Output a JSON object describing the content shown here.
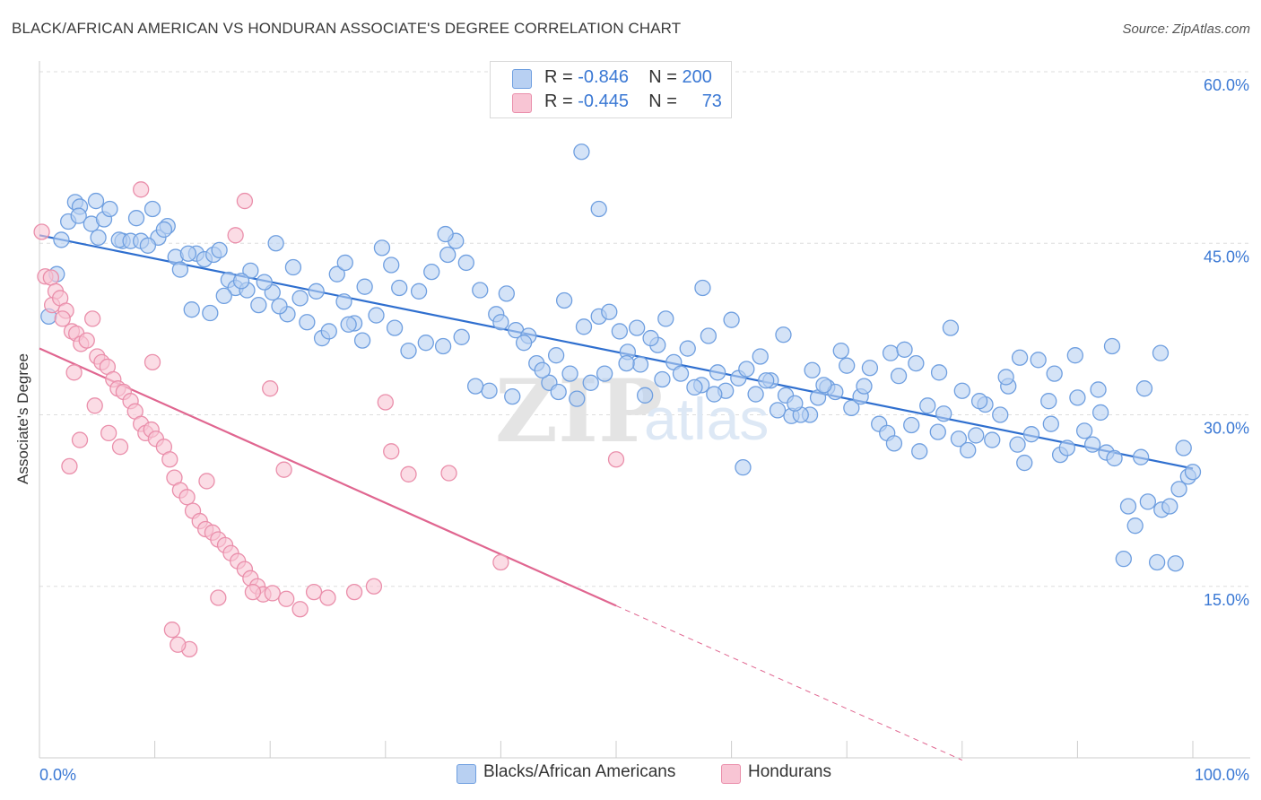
{
  "header": {
    "title": "BLACK/AFRICAN AMERICAN VS HONDURAN ASSOCIATE'S DEGREE CORRELATION CHART",
    "source": "Source: ZipAtlas.com"
  },
  "legend": {
    "rows": [
      {
        "r_label": "R =",
        "r_value": "-0.846",
        "n_label": "N =",
        "n_value": "200"
      },
      {
        "r_label": "R =",
        "r_value": "-0.445",
        "n_label": "N =",
        "n_value": "73"
      }
    ]
  },
  "bottom_legend": {
    "blue": "Blacks/African Americans",
    "pink": "Hondurans"
  },
  "colors": {
    "blue_fill": "#b8d0f2",
    "blue_stroke": "#6f9fe0",
    "blue_line": "#2f6fcf",
    "pink_fill": "#f8c5d4",
    "pink_stroke": "#ea8fab",
    "pink_line": "#e06690",
    "tick_label": "#3a78d4",
    "grid": "#dddddd"
  },
  "chart_data": {
    "type": "scatter",
    "title": "BLACK/AFRICAN AMERICAN VS HONDURAN ASSOCIATE'S DEGREE CORRELATION CHART",
    "xlabel": "",
    "ylabel": "Associate's Degree",
    "xlim": [
      0,
      100
    ],
    "ylim": [
      0,
      60
    ],
    "x_ticks": [
      "0.0%",
      "100.0%"
    ],
    "y_ticks": [
      {
        "value": 15,
        "label": "15.0%"
      },
      {
        "value": 30,
        "label": "30.0%"
      },
      {
        "value": 45,
        "label": "45.0%"
      },
      {
        "value": 60,
        "label": "60.0%"
      }
    ],
    "watermark": "ZIPatlas",
    "series": [
      {
        "name": "Blacks/African Americans",
        "R": -0.846,
        "N": 200,
        "trend": {
          "x": [
            0,
            100
          ],
          "y": [
            45.7,
            25.3
          ]
        },
        "points": [
          [
            1.5,
            42.3
          ],
          [
            0.8,
            38.6
          ],
          [
            1.9,
            45.3
          ],
          [
            2.5,
            46.9
          ],
          [
            3.1,
            48.6
          ],
          [
            3.5,
            48.2
          ],
          [
            3.4,
            47.4
          ],
          [
            4.5,
            46.7
          ],
          [
            5.1,
            45.5
          ],
          [
            5.6,
            47.1
          ],
          [
            4.9,
            48.7
          ],
          [
            6.1,
            48.0
          ],
          [
            7.2,
            45.2
          ],
          [
            6.9,
            45.3
          ],
          [
            7.9,
            45.2
          ],
          [
            8.4,
            47.2
          ],
          [
            9.8,
            48.0
          ],
          [
            8.8,
            45.2
          ],
          [
            10.3,
            45.5
          ],
          [
            11.1,
            46.5
          ],
          [
            11.8,
            43.8
          ],
          [
            12.2,
            42.7
          ],
          [
            13.6,
            44.1
          ],
          [
            12.9,
            44.1
          ],
          [
            14.3,
            43.6
          ],
          [
            15.1,
            44.0
          ],
          [
            15.6,
            44.4
          ],
          [
            16.4,
            41.8
          ],
          [
            17.0,
            41.1
          ],
          [
            18.3,
            42.6
          ],
          [
            19.0,
            39.6
          ],
          [
            20.2,
            40.7
          ],
          [
            21.5,
            38.8
          ],
          [
            20.8,
            39.5
          ],
          [
            22.6,
            40.2
          ],
          [
            23.2,
            38.1
          ],
          [
            24.5,
            36.7
          ],
          [
            25.1,
            37.3
          ],
          [
            26.4,
            39.9
          ],
          [
            27.3,
            38.0
          ],
          [
            28.2,
            41.2
          ],
          [
            29.7,
            44.6
          ],
          [
            30.5,
            43.1
          ],
          [
            31.2,
            41.1
          ],
          [
            32.9,
            40.8
          ],
          [
            34.0,
            42.5
          ],
          [
            35.4,
            44.0
          ],
          [
            36.1,
            45.2
          ],
          [
            37.0,
            43.3
          ],
          [
            38.2,
            40.9
          ],
          [
            39.6,
            38.8
          ],
          [
            40.5,
            40.6
          ],
          [
            41.3,
            37.4
          ],
          [
            42.4,
            36.9
          ],
          [
            43.1,
            34.5
          ],
          [
            44.8,
            35.2
          ],
          [
            46.0,
            33.6
          ],
          [
            45.5,
            40.0
          ],
          [
            47.2,
            37.7
          ],
          [
            48.5,
            38.6
          ],
          [
            49.4,
            39.0
          ],
          [
            50.3,
            37.3
          ],
          [
            51.0,
            35.5
          ],
          [
            52.1,
            34.4
          ],
          [
            53.6,
            36.1
          ],
          [
            54.3,
            38.4
          ],
          [
            55.0,
            34.6
          ],
          [
            56.2,
            35.8
          ],
          [
            57.4,
            32.6
          ],
          [
            58.8,
            33.7
          ],
          [
            59.5,
            32.1
          ],
          [
            60.6,
            33.2
          ],
          [
            61.3,
            34.0
          ],
          [
            62.1,
            31.8
          ],
          [
            63.4,
            33.0
          ],
          [
            64.7,
            31.7
          ],
          [
            65.2,
            29.9
          ],
          [
            66.8,
            30.0
          ],
          [
            67.5,
            31.5
          ],
          [
            68.3,
            32.4
          ],
          [
            69.0,
            32.0
          ],
          [
            70.4,
            30.6
          ],
          [
            71.2,
            31.6
          ],
          [
            72.8,
            29.2
          ],
          [
            73.5,
            28.4
          ],
          [
            74.1,
            27.5
          ],
          [
            75.6,
            29.1
          ],
          [
            76.3,
            26.8
          ],
          [
            77.9,
            28.5
          ],
          [
            78.4,
            30.1
          ],
          [
            79.7,
            27.9
          ],
          [
            80.5,
            26.9
          ],
          [
            81.2,
            28.2
          ],
          [
            82.6,
            27.8
          ],
          [
            83.3,
            30.0
          ],
          [
            84.8,
            27.4
          ],
          [
            85.4,
            25.8
          ],
          [
            86.0,
            28.3
          ],
          [
            87.7,
            29.2
          ],
          [
            88.5,
            26.5
          ],
          [
            89.1,
            27.1
          ],
          [
            90.6,
            28.6
          ],
          [
            91.3,
            27.4
          ],
          [
            92.5,
            26.7
          ],
          [
            93.2,
            26.2
          ],
          [
            94.4,
            22.0
          ],
          [
            95.0,
            20.3
          ],
          [
            96.1,
            22.4
          ],
          [
            97.3,
            21.7
          ],
          [
            98.0,
            22.0
          ],
          [
            98.8,
            23.5
          ],
          [
            99.6,
            24.6
          ],
          [
            100.0,
            25.0
          ],
          [
            96.9,
            17.1
          ],
          [
            98.5,
            17.0
          ],
          [
            94.0,
            17.4
          ],
          [
            99.2,
            27.1
          ],
          [
            95.5,
            26.3
          ],
          [
            91.8,
            32.2
          ],
          [
            90.0,
            31.5
          ],
          [
            88.0,
            33.6
          ],
          [
            86.6,
            34.8
          ],
          [
            84.0,
            32.5
          ],
          [
            82.0,
            30.9
          ],
          [
            80.0,
            32.1
          ],
          [
            78.0,
            33.7
          ],
          [
            76.0,
            34.5
          ],
          [
            74.5,
            33.4
          ],
          [
            72.0,
            34.1
          ],
          [
            70.0,
            34.3
          ],
          [
            68.0,
            32.6
          ],
          [
            66.0,
            30.0
          ],
          [
            64.0,
            30.4
          ],
          [
            62.5,
            35.1
          ],
          [
            60.0,
            38.3
          ],
          [
            58.0,
            36.9
          ],
          [
            56.8,
            32.4
          ],
          [
            55.6,
            33.6
          ],
          [
            53.0,
            36.7
          ],
          [
            51.8,
            37.6
          ],
          [
            50.9,
            34.5
          ],
          [
            49.0,
            33.6
          ],
          [
            47.8,
            32.8
          ],
          [
            46.6,
            31.4
          ],
          [
            44.2,
            32.8
          ],
          [
            43.6,
            33.9
          ],
          [
            42.0,
            36.3
          ],
          [
            40.0,
            38.1
          ],
          [
            39.0,
            32.1
          ],
          [
            37.8,
            32.5
          ],
          [
            36.6,
            36.8
          ],
          [
            35.0,
            36.0
          ],
          [
            33.5,
            36.3
          ],
          [
            32.0,
            35.6
          ],
          [
            30.8,
            37.6
          ],
          [
            29.2,
            38.7
          ],
          [
            28.0,
            36.5
          ],
          [
            26.8,
            37.9
          ],
          [
            25.8,
            42.3
          ],
          [
            24.0,
            40.8
          ],
          [
            22.0,
            42.9
          ],
          [
            20.5,
            45.0
          ],
          [
            19.5,
            41.6
          ],
          [
            18.0,
            40.9
          ],
          [
            17.5,
            41.7
          ],
          [
            16.0,
            40.4
          ],
          [
            14.8,
            38.9
          ],
          [
            13.2,
            39.2
          ],
          [
            10.8,
            46.2
          ],
          [
            9.4,
            44.8
          ],
          [
            61.0,
            25.4
          ],
          [
            47.0,
            53.0
          ],
          [
            48.5,
            48.0
          ],
          [
            35.2,
            45.8
          ],
          [
            26.5,
            43.3
          ],
          [
            57.5,
            41.1
          ],
          [
            64.5,
            37.0
          ],
          [
            69.5,
            35.6
          ],
          [
            73.8,
            35.4
          ],
          [
            79.0,
            37.6
          ],
          [
            87.5,
            31.2
          ],
          [
            93.0,
            36.0
          ],
          [
            97.2,
            35.4
          ],
          [
            89.8,
            35.2
          ],
          [
            85.0,
            35.0
          ],
          [
            75.0,
            35.7
          ],
          [
            67.0,
            33.9
          ],
          [
            63.0,
            33.0
          ],
          [
            54.0,
            33.1
          ],
          [
            52.5,
            31.7
          ],
          [
            45.0,
            32.0
          ],
          [
            41.0,
            31.6
          ],
          [
            95.8,
            32.3
          ],
          [
            92.0,
            30.2
          ],
          [
            83.8,
            33.3
          ],
          [
            81.5,
            31.2
          ],
          [
            77.0,
            30.8
          ],
          [
            71.5,
            32.5
          ],
          [
            65.5,
            31.0
          ],
          [
            58.5,
            31.8
          ]
        ]
      },
      {
        "name": "Hondurans",
        "R": -0.445,
        "N": 73,
        "trend": {
          "x": [
            0,
            50
          ],
          "y": [
            35.8,
            13.3
          ]
        },
        "trend_dashed": {
          "x": [
            50,
            80
          ],
          "y": [
            13.3,
            -0.2
          ]
        },
        "points": [
          [
            0.2,
            46.0
          ],
          [
            0.5,
            42.1
          ],
          [
            1.0,
            42.0
          ],
          [
            1.4,
            40.8
          ],
          [
            1.1,
            39.6
          ],
          [
            1.8,
            40.2
          ],
          [
            2.3,
            39.1
          ],
          [
            2.0,
            38.4
          ],
          [
            2.8,
            37.3
          ],
          [
            3.2,
            37.1
          ],
          [
            3.6,
            36.2
          ],
          [
            4.1,
            36.5
          ],
          [
            4.6,
            38.4
          ],
          [
            5.0,
            35.1
          ],
          [
            5.4,
            34.6
          ],
          [
            5.9,
            34.2
          ],
          [
            6.4,
            33.1
          ],
          [
            6.8,
            32.3
          ],
          [
            7.3,
            32.0
          ],
          [
            7.9,
            31.2
          ],
          [
            8.3,
            30.3
          ],
          [
            8.8,
            29.2
          ],
          [
            9.2,
            28.4
          ],
          [
            9.7,
            28.7
          ],
          [
            10.1,
            27.9
          ],
          [
            10.8,
            27.2
          ],
          [
            11.3,
            26.1
          ],
          [
            11.7,
            24.5
          ],
          [
            12.2,
            23.4
          ],
          [
            12.8,
            22.8
          ],
          [
            13.3,
            21.6
          ],
          [
            13.9,
            20.7
          ],
          [
            14.4,
            20.0
          ],
          [
            15.0,
            19.7
          ],
          [
            15.5,
            19.1
          ],
          [
            16.1,
            18.6
          ],
          [
            16.6,
            17.9
          ],
          [
            17.2,
            17.2
          ],
          [
            17.8,
            16.5
          ],
          [
            18.3,
            15.7
          ],
          [
            18.9,
            15.0
          ],
          [
            19.4,
            14.3
          ],
          [
            20.2,
            14.4
          ],
          [
            21.4,
            13.9
          ],
          [
            22.6,
            13.0
          ],
          [
            23.8,
            14.5
          ],
          [
            25.0,
            14.0
          ],
          [
            27.3,
            14.5
          ],
          [
            29.0,
            15.0
          ],
          [
            17.8,
            48.7
          ],
          [
            17.0,
            45.7
          ],
          [
            8.8,
            49.7
          ],
          [
            9.8,
            34.6
          ],
          [
            14.5,
            24.2
          ],
          [
            20.0,
            32.3
          ],
          [
            21.2,
            25.2
          ],
          [
            6.0,
            28.4
          ],
          [
            7.0,
            27.2
          ],
          [
            3.5,
            27.8
          ],
          [
            13.0,
            9.5
          ],
          [
            12.0,
            9.9
          ],
          [
            11.5,
            11.2
          ],
          [
            15.5,
            14.0
          ],
          [
            18.5,
            14.5
          ],
          [
            32.0,
            24.8
          ],
          [
            35.5,
            24.9
          ],
          [
            30.5,
            26.8
          ],
          [
            40.0,
            17.1
          ],
          [
            50.0,
            26.1
          ],
          [
            30.0,
            31.1
          ],
          [
            3.0,
            33.7
          ],
          [
            4.8,
            30.8
          ],
          [
            2.6,
            25.5
          ]
        ]
      }
    ]
  }
}
